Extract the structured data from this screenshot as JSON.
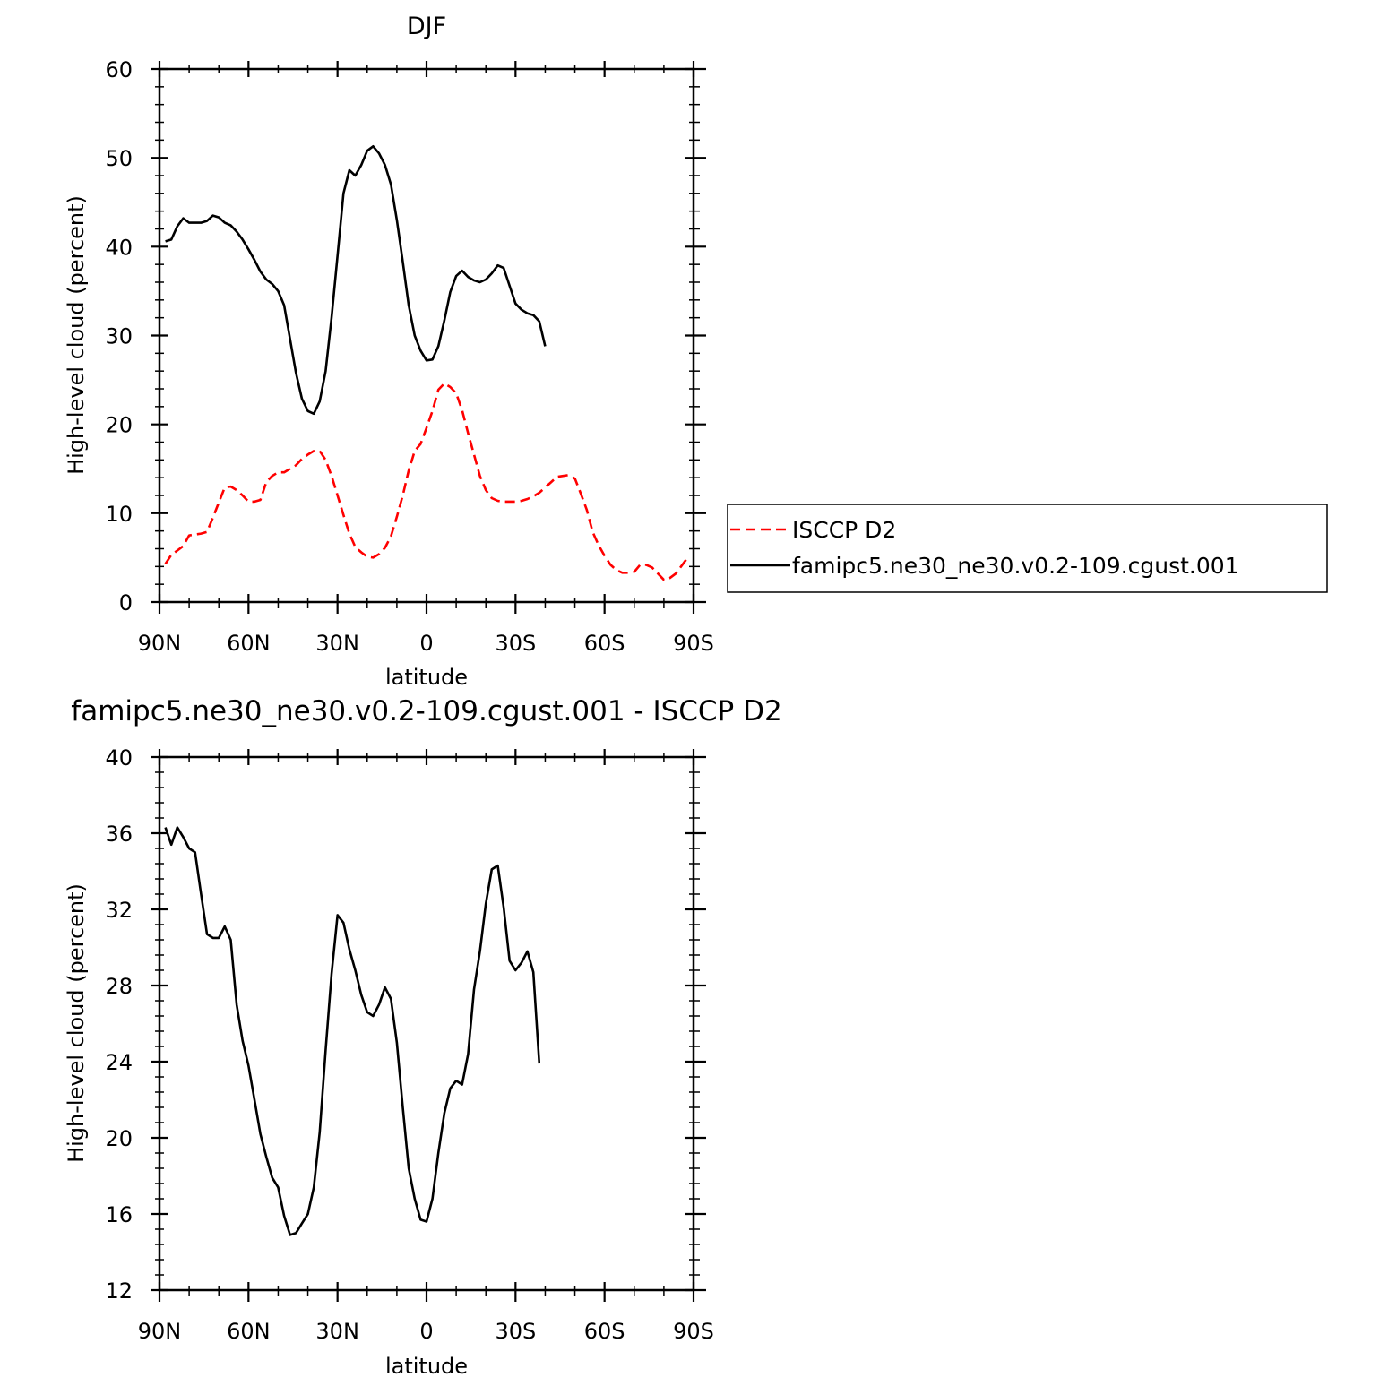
{
  "chart_data": [
    {
      "type": "line",
      "title": "DJF",
      "xlabel": "latitude",
      "ylabel": "High-level cloud (percent)",
      "xlim": [
        -90,
        90
      ],
      "ylim": [
        0,
        60
      ],
      "yticks": [
        0,
        10,
        20,
        30,
        40,
        50,
        60
      ],
      "xticks": [
        {
          "value": -90,
          "label": "90N"
        },
        {
          "value": -60,
          "label": "60N"
        },
        {
          "value": -30,
          "label": "30N"
        },
        {
          "value": 0,
          "label": "0"
        },
        {
          "value": 30,
          "label": "30S"
        },
        {
          "value": 60,
          "label": "60S"
        },
        {
          "value": 90,
          "label": "90S"
        }
      ],
      "legend": "right",
      "series": [
        {
          "name": "ISCCP D2",
          "color": "#ff0000",
          "dash": "dashed",
          "points": [
            [
              -88,
              4.3
            ],
            [
              -86,
              5.3
            ],
            [
              -84,
              5.8
            ],
            [
              -82,
              6.3
            ],
            [
              -80,
              7.5
            ],
            [
              -78,
              7.6
            ],
            [
              -76,
              7.7
            ],
            [
              -74,
              7.9
            ],
            [
              -72,
              9.5
            ],
            [
              -70,
              11.2
            ],
            [
              -68,
              12.9
            ],
            [
              -66,
              13.0
            ],
            [
              -64,
              12.6
            ],
            [
              -62,
              12.0
            ],
            [
              -60,
              11.3
            ],
            [
              -58,
              11.3
            ],
            [
              -56,
              11.5
            ],
            [
              -54,
              13.5
            ],
            [
              -52,
              14.2
            ],
            [
              -50,
              14.6
            ],
            [
              -48,
              14.6
            ],
            [
              -46,
              15.0
            ],
            [
              -44,
              15.4
            ],
            [
              -42,
              16.1
            ],
            [
              -40,
              16.6
            ],
            [
              -38,
              17.0
            ],
            [
              -36,
              17.0
            ],
            [
              -34,
              16.0
            ],
            [
              -32,
              14.2
            ],
            [
              -30,
              12.0
            ],
            [
              -28,
              9.8
            ],
            [
              -26,
              7.7
            ],
            [
              -24,
              6.2
            ],
            [
              -22,
              5.6
            ],
            [
              -20,
              5.1
            ],
            [
              -18,
              5.0
            ],
            [
              -16,
              5.4
            ],
            [
              -14,
              6.1
            ],
            [
              -12,
              7.4
            ],
            [
              -10,
              9.6
            ],
            [
              -8,
              12.0
            ],
            [
              -6,
              14.8
            ],
            [
              -4,
              17.0
            ],
            [
              -2,
              17.8
            ],
            [
              0,
              19.6
            ],
            [
              2,
              21.5
            ],
            [
              4,
              23.9
            ],
            [
              6,
              24.6
            ],
            [
              8,
              24.2
            ],
            [
              10,
              23.5
            ],
            [
              12,
              21.6
            ],
            [
              14,
              19.0
            ],
            [
              16,
              16.6
            ],
            [
              18,
              14.2
            ],
            [
              20,
              12.6
            ],
            [
              22,
              11.7
            ],
            [
              24,
              11.4
            ],
            [
              26,
              11.3
            ],
            [
              28,
              11.3
            ],
            [
              30,
              11.3
            ],
            [
              32,
              11.4
            ],
            [
              34,
              11.6
            ],
            [
              36,
              11.9
            ],
            [
              38,
              12.3
            ],
            [
              40,
              12.9
            ],
            [
              42,
              13.5
            ],
            [
              44,
              14.1
            ],
            [
              46,
              14.2
            ],
            [
              48,
              14.3
            ],
            [
              50,
              13.9
            ],
            [
              52,
              12.2
            ],
            [
              54,
              10.4
            ],
            [
              56,
              7.9
            ],
            [
              58,
              6.4
            ],
            [
              60,
              5.2
            ],
            [
              62,
              4.2
            ],
            [
              64,
              3.6
            ],
            [
              66,
              3.3
            ],
            [
              68,
              3.3
            ],
            [
              70,
              3.4
            ],
            [
              72,
              4.2
            ],
            [
              74,
              4.2
            ],
            [
              76,
              3.9
            ],
            [
              78,
              3.2
            ],
            [
              80,
              2.5
            ],
            [
              82,
              2.7
            ],
            [
              84,
              3.2
            ],
            [
              86,
              4.1
            ],
            [
              88,
              5.0
            ]
          ]
        },
        {
          "name": "famipc5.ne30_ne30.v0.2-109.cgust.001",
          "color": "#000000",
          "dash": "solid",
          "points": [
            [
              -88,
              40.6
            ],
            [
              -86,
              40.8
            ],
            [
              -84,
              42.3
            ],
            [
              -82,
              43.2
            ],
            [
              -80,
              42.7
            ],
            [
              -78,
              42.7
            ],
            [
              -76,
              42.7
            ],
            [
              -74,
              42.9
            ],
            [
              -72,
              43.5
            ],
            [
              -70,
              43.3
            ],
            [
              -68,
              42.7
            ],
            [
              -66,
              42.4
            ],
            [
              -64,
              41.7
            ],
            [
              -62,
              40.8
            ],
            [
              -60,
              39.7
            ],
            [
              -58,
              38.5
            ],
            [
              -56,
              37.2
            ],
            [
              -54,
              36.3
            ],
            [
              -52,
              35.8
            ],
            [
              -50,
              35.0
            ],
            [
              -48,
              33.4
            ],
            [
              -46,
              29.6
            ],
            [
              -44,
              25.8
            ],
            [
              -42,
              22.9
            ],
            [
              -40,
              21.5
            ],
            [
              -38,
              21.2
            ],
            [
              -36,
              22.6
            ],
            [
              -34,
              26.0
            ],
            [
              -32,
              32.0
            ],
            [
              -30,
              39.0
            ],
            [
              -28,
              46.0
            ],
            [
              -26,
              48.6
            ],
            [
              -24,
              48.0
            ],
            [
              -22,
              49.2
            ],
            [
              -20,
              50.8
            ],
            [
              -18,
              51.3
            ],
            [
              -16,
              50.5
            ],
            [
              -14,
              49.2
            ],
            [
              -12,
              47.0
            ],
            [
              -10,
              43.0
            ],
            [
              -8,
              38.3
            ],
            [
              -6,
              33.4
            ],
            [
              -4,
              30.0
            ],
            [
              -2,
              28.3
            ],
            [
              0,
              27.2
            ],
            [
              2,
              27.3
            ],
            [
              4,
              28.8
            ],
            [
              6,
              31.7
            ],
            [
              8,
              34.9
            ],
            [
              10,
              36.7
            ],
            [
              12,
              37.3
            ],
            [
              14,
              36.6
            ],
            [
              16,
              36.2
            ],
            [
              18,
              36.0
            ],
            [
              20,
              36.3
            ],
            [
              22,
              37.0
            ],
            [
              24,
              37.9
            ],
            [
              26,
              37.6
            ],
            [
              28,
              35.6
            ],
            [
              30,
              33.6
            ],
            [
              32,
              32.9
            ],
            [
              34,
              32.5
            ],
            [
              36,
              32.3
            ],
            [
              38,
              31.6
            ],
            [
              40,
              28.8
            ]
          ]
        }
      ]
    },
    {
      "type": "line",
      "title": "famipc5.ne30_ne30.v0.2-109.cgust.001 - ISCCP D2",
      "xlabel": "latitude",
      "ylabel": "High-level cloud (percent)",
      "xlim": [
        -90,
        90
      ],
      "ylim": [
        12,
        40
      ],
      "yticks": [
        12,
        16,
        20,
        24,
        28,
        32,
        36,
        40
      ],
      "xticks": [
        {
          "value": -90,
          "label": "90N"
        },
        {
          "value": -60,
          "label": "60N"
        },
        {
          "value": -30,
          "label": "30N"
        },
        {
          "value": 0,
          "label": "0"
        },
        {
          "value": 30,
          "label": "30S"
        },
        {
          "value": 60,
          "label": "60S"
        },
        {
          "value": 90,
          "label": "90S"
        }
      ],
      "series": [
        {
          "color": "#000000",
          "dash": "solid",
          "points": [
            [
              -88,
              36.3
            ],
            [
              -86,
              35.4
            ],
            [
              -84,
              36.3
            ],
            [
              -82,
              35.8
            ],
            [
              -80,
              35.2
            ],
            [
              -78,
              35.0
            ],
            [
              -76,
              32.8
            ],
            [
              -74,
              30.7
            ],
            [
              -72,
              30.5
            ],
            [
              -70,
              30.5
            ],
            [
              -68,
              31.1
            ],
            [
              -66,
              30.4
            ],
            [
              -64,
              27.0
            ],
            [
              -62,
              25.1
            ],
            [
              -60,
              23.8
            ],
            [
              -58,
              22.0
            ],
            [
              -56,
              20.2
            ],
            [
              -54,
              19.0
            ],
            [
              -52,
              17.9
            ],
            [
              -50,
              17.4
            ],
            [
              -48,
              15.9
            ],
            [
              -46,
              14.9
            ],
            [
              -44,
              15.0
            ],
            [
              -42,
              15.5
            ],
            [
              -40,
              16.0
            ],
            [
              -38,
              17.4
            ],
            [
              -36,
              20.3
            ],
            [
              -34,
              24.6
            ],
            [
              -32,
              28.6
            ],
            [
              -30,
              31.7
            ],
            [
              -28,
              31.3
            ],
            [
              -26,
              29.9
            ],
            [
              -24,
              28.8
            ],
            [
              -22,
              27.5
            ],
            [
              -20,
              26.6
            ],
            [
              -18,
              26.4
            ],
            [
              -16,
              27.0
            ],
            [
              -14,
              27.9
            ],
            [
              -12,
              27.3
            ],
            [
              -10,
              25.0
            ],
            [
              -8,
              21.6
            ],
            [
              -6,
              18.4
            ],
            [
              -4,
              16.8
            ],
            [
              -2,
              15.7
            ],
            [
              0,
              15.6
            ],
            [
              2,
              16.8
            ],
            [
              4,
              19.2
            ],
            [
              6,
              21.3
            ],
            [
              8,
              22.6
            ],
            [
              10,
              23.0
            ],
            [
              12,
              22.8
            ],
            [
              14,
              24.4
            ],
            [
              16,
              27.8
            ],
            [
              18,
              29.8
            ],
            [
              20,
              32.3
            ],
            [
              22,
              34.1
            ],
            [
              24,
              34.3
            ],
            [
              26,
              32.1
            ],
            [
              28,
              29.3
            ],
            [
              30,
              28.8
            ],
            [
              32,
              29.2
            ],
            [
              34,
              29.8
            ],
            [
              36,
              28.7
            ],
            [
              38,
              23.9
            ]
          ]
        }
      ]
    }
  ]
}
